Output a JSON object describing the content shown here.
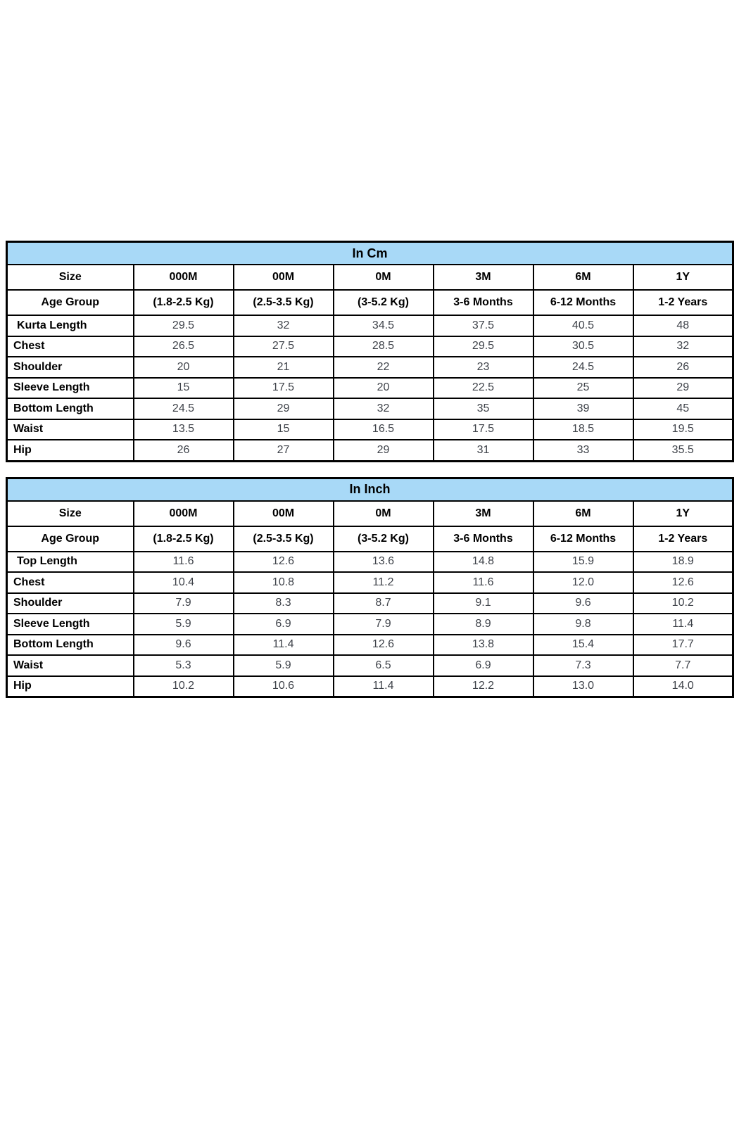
{
  "colors": {
    "title_fill": "#A8D9F7",
    "border": "#000000",
    "label_text": "#000000",
    "value_text": "#3E4249",
    "page_background": "#ffffff"
  },
  "tables": [
    {
      "title": "In Cm",
      "size_row": [
        "Size",
        "000M",
        "00M",
        "0M",
        "3M",
        "6M",
        "1Y"
      ],
      "age_row": [
        "Age Group",
        "(1.8-2.5 Kg)",
        "(2.5-3.5 Kg)",
        "(3-5.2 Kg)",
        "3-6 Months",
        "6-12 Months",
        "1-2 Years"
      ],
      "rows": [
        {
          "label": "Kurta Length",
          "indent": true,
          "values": [
            "29.5",
            "32",
            "34.5",
            "37.5",
            "40.5",
            "48"
          ]
        },
        {
          "label": "Chest",
          "indent": false,
          "values": [
            "26.5",
            "27.5",
            "28.5",
            "29.5",
            "30.5",
            "32"
          ]
        },
        {
          "label": "Shoulder",
          "indent": false,
          "values": [
            "20",
            "21",
            "22",
            "23",
            "24.5",
            "26"
          ]
        },
        {
          "label": "Sleeve Length",
          "indent": false,
          "values": [
            "15",
            "17.5",
            "20",
            "22.5",
            "25",
            "29"
          ]
        },
        {
          "label": "Bottom Length",
          "indent": false,
          "values": [
            "24.5",
            "29",
            "32",
            "35",
            "39",
            "45"
          ]
        },
        {
          "label": "Waist",
          "indent": false,
          "values": [
            "13.5",
            "15",
            "16.5",
            "17.5",
            "18.5",
            "19.5"
          ]
        },
        {
          "label": "Hip",
          "indent": false,
          "values": [
            "26",
            "27",
            "29",
            "31",
            "33",
            "35.5"
          ]
        }
      ]
    },
    {
      "title": "In Inch",
      "size_row": [
        "Size",
        "000M",
        "00M",
        "0M",
        "3M",
        "6M",
        "1Y"
      ],
      "age_row": [
        "Age Group",
        "(1.8-2.5 Kg)",
        "(2.5-3.5 Kg)",
        "(3-5.2 Kg)",
        "3-6 Months",
        "6-12 Months",
        "1-2 Years"
      ],
      "rows": [
        {
          "label": "Top Length",
          "indent": true,
          "values": [
            "11.6",
            "12.6",
            "13.6",
            "14.8",
            "15.9",
            "18.9"
          ]
        },
        {
          "label": "Chest",
          "indent": false,
          "values": [
            "10.4",
            "10.8",
            "11.2",
            "11.6",
            "12.0",
            "12.6"
          ]
        },
        {
          "label": "Shoulder",
          "indent": false,
          "values": [
            "7.9",
            "8.3",
            "8.7",
            "9.1",
            "9.6",
            "10.2"
          ]
        },
        {
          "label": "Sleeve Length",
          "indent": false,
          "values": [
            "5.9",
            "6.9",
            "7.9",
            "8.9",
            "9.8",
            "11.4"
          ]
        },
        {
          "label": "Bottom Length",
          "indent": false,
          "values": [
            "9.6",
            "11.4",
            "12.6",
            "13.8",
            "15.4",
            "17.7"
          ]
        },
        {
          "label": "Waist",
          "indent": false,
          "values": [
            "5.3",
            "5.9",
            "6.5",
            "6.9",
            "7.3",
            "7.7"
          ]
        },
        {
          "label": "Hip",
          "indent": false,
          "values": [
            "10.2",
            "10.6",
            "11.4",
            "12.2",
            "13.0",
            "14.0"
          ]
        }
      ]
    }
  ]
}
